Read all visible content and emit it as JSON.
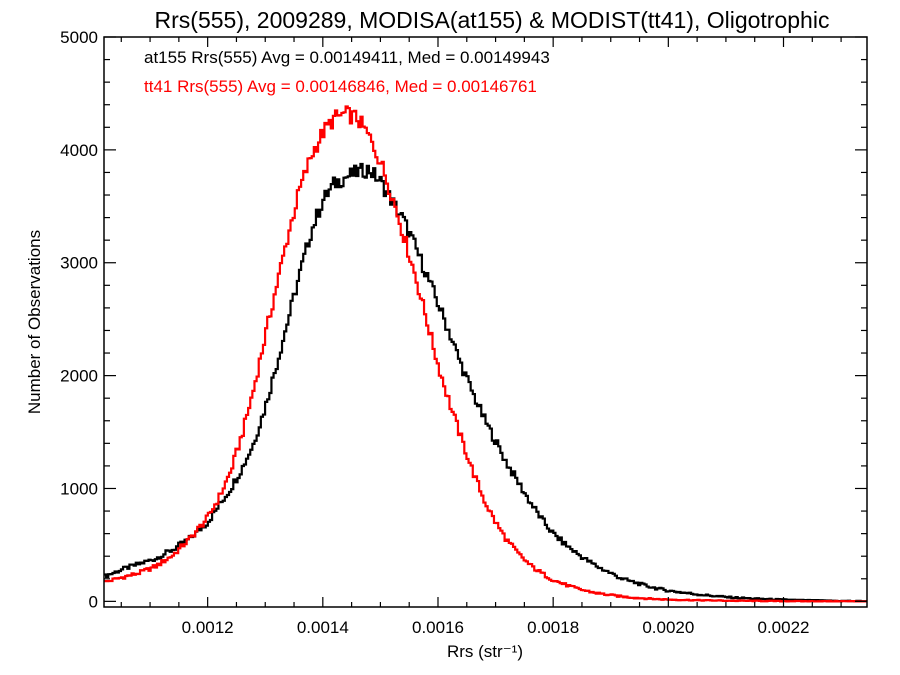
{
  "chart_data": {
    "type": "line",
    "title": "Rrs(555), 2009289, MODISA(at155) & MODIST(tt41), Oligotrophic",
    "xlabel": "Rrs (str⁻¹)",
    "ylabel": "Number of Observations",
    "xlim": [
      0.00102,
      0.002345
    ],
    "ylim": [
      -50,
      5000
    ],
    "xticks": [
      0.0012,
      0.0014,
      0.0016,
      0.0018,
      0.002,
      0.0022
    ],
    "xtick_labels": [
      "0.0012",
      "0.0014",
      "0.0016",
      "0.0018",
      "0.0020",
      "0.0022"
    ],
    "yticks": [
      0,
      1000,
      2000,
      3000,
      4000,
      5000
    ],
    "ytick_labels": [
      "0",
      "1000",
      "2000",
      "3000",
      "4000",
      "5000"
    ],
    "grid": false,
    "step": true,
    "series": [
      {
        "name": "at155",
        "color": "#000000",
        "legend": "at155 Rrs(555) Avg = 0.00149411, Med = 0.00149943",
        "x": [
          0.00102,
          0.00105,
          0.00108,
          0.00111,
          0.00114,
          0.00117,
          0.0012,
          0.00122,
          0.00124,
          0.00126,
          0.00128,
          0.0013,
          0.00132,
          0.00134,
          0.00136,
          0.00138,
          0.0014,
          0.00142,
          0.00144,
          0.00146,
          0.00148,
          0.0015,
          0.00152,
          0.00154,
          0.00156,
          0.00158,
          0.0016,
          0.00162,
          0.00164,
          0.00166,
          0.00168,
          0.0017,
          0.00172,
          0.00174,
          0.00176,
          0.00178,
          0.0018,
          0.00182,
          0.00184,
          0.00186,
          0.00188,
          0.0019,
          0.00192,
          0.00194,
          0.00196,
          0.00198,
          0.002,
          0.00205,
          0.0021,
          0.00215,
          0.0022,
          0.00225,
          0.0023,
          0.002345
        ],
        "y": [
          220,
          280,
          330,
          380,
          460,
          560,
          700,
          850,
          1000,
          1180,
          1400,
          1720,
          2100,
          2500,
          2900,
          3280,
          3550,
          3700,
          3760,
          3800,
          3830,
          3720,
          3550,
          3380,
          3150,
          2900,
          2640,
          2380,
          2100,
          1850,
          1620,
          1420,
          1220,
          1050,
          880,
          730,
          600,
          510,
          430,
          360,
          300,
          250,
          200,
          170,
          140,
          115,
          95,
          62,
          38,
          24,
          15,
          8,
          4,
          2
        ]
      },
      {
        "name": "tt41",
        "color": "#ff0000",
        "legend": "tt41 Rrs(555) Avg = 0.00146846, Med = 0.00146761",
        "x": [
          0.00102,
          0.00105,
          0.00108,
          0.00111,
          0.00114,
          0.00117,
          0.0012,
          0.00122,
          0.00124,
          0.00126,
          0.00128,
          0.0013,
          0.00132,
          0.00134,
          0.00136,
          0.00138,
          0.0014,
          0.00142,
          0.00144,
          0.00146,
          0.00148,
          0.0015,
          0.00152,
          0.00154,
          0.00156,
          0.00158,
          0.0016,
          0.00162,
          0.00164,
          0.00166,
          0.00168,
          0.0017,
          0.00172,
          0.00174,
          0.00176,
          0.00178,
          0.0018,
          0.00182,
          0.00184,
          0.00186,
          0.00188,
          0.0019,
          0.00192,
          0.00194,
          0.00196,
          0.00198,
          0.002,
          0.00205,
          0.0021,
          0.00215,
          0.0022,
          0.00225,
          0.0023,
          0.002345
        ],
        "y": [
          170,
          210,
          250,
          310,
          410,
          560,
          740,
          920,
          1150,
          1480,
          1880,
          2350,
          2800,
          3250,
          3650,
          3950,
          4150,
          4280,
          4320,
          4280,
          4120,
          3900,
          3600,
          3250,
          2900,
          2500,
          2100,
          1760,
          1450,
          1160,
          900,
          700,
          540,
          420,
          320,
          250,
          190,
          150,
          115,
          90,
          70,
          55,
          42,
          33,
          26,
          20,
          16,
          10,
          6,
          4,
          2,
          1,
          1,
          0
        ]
      }
    ]
  }
}
